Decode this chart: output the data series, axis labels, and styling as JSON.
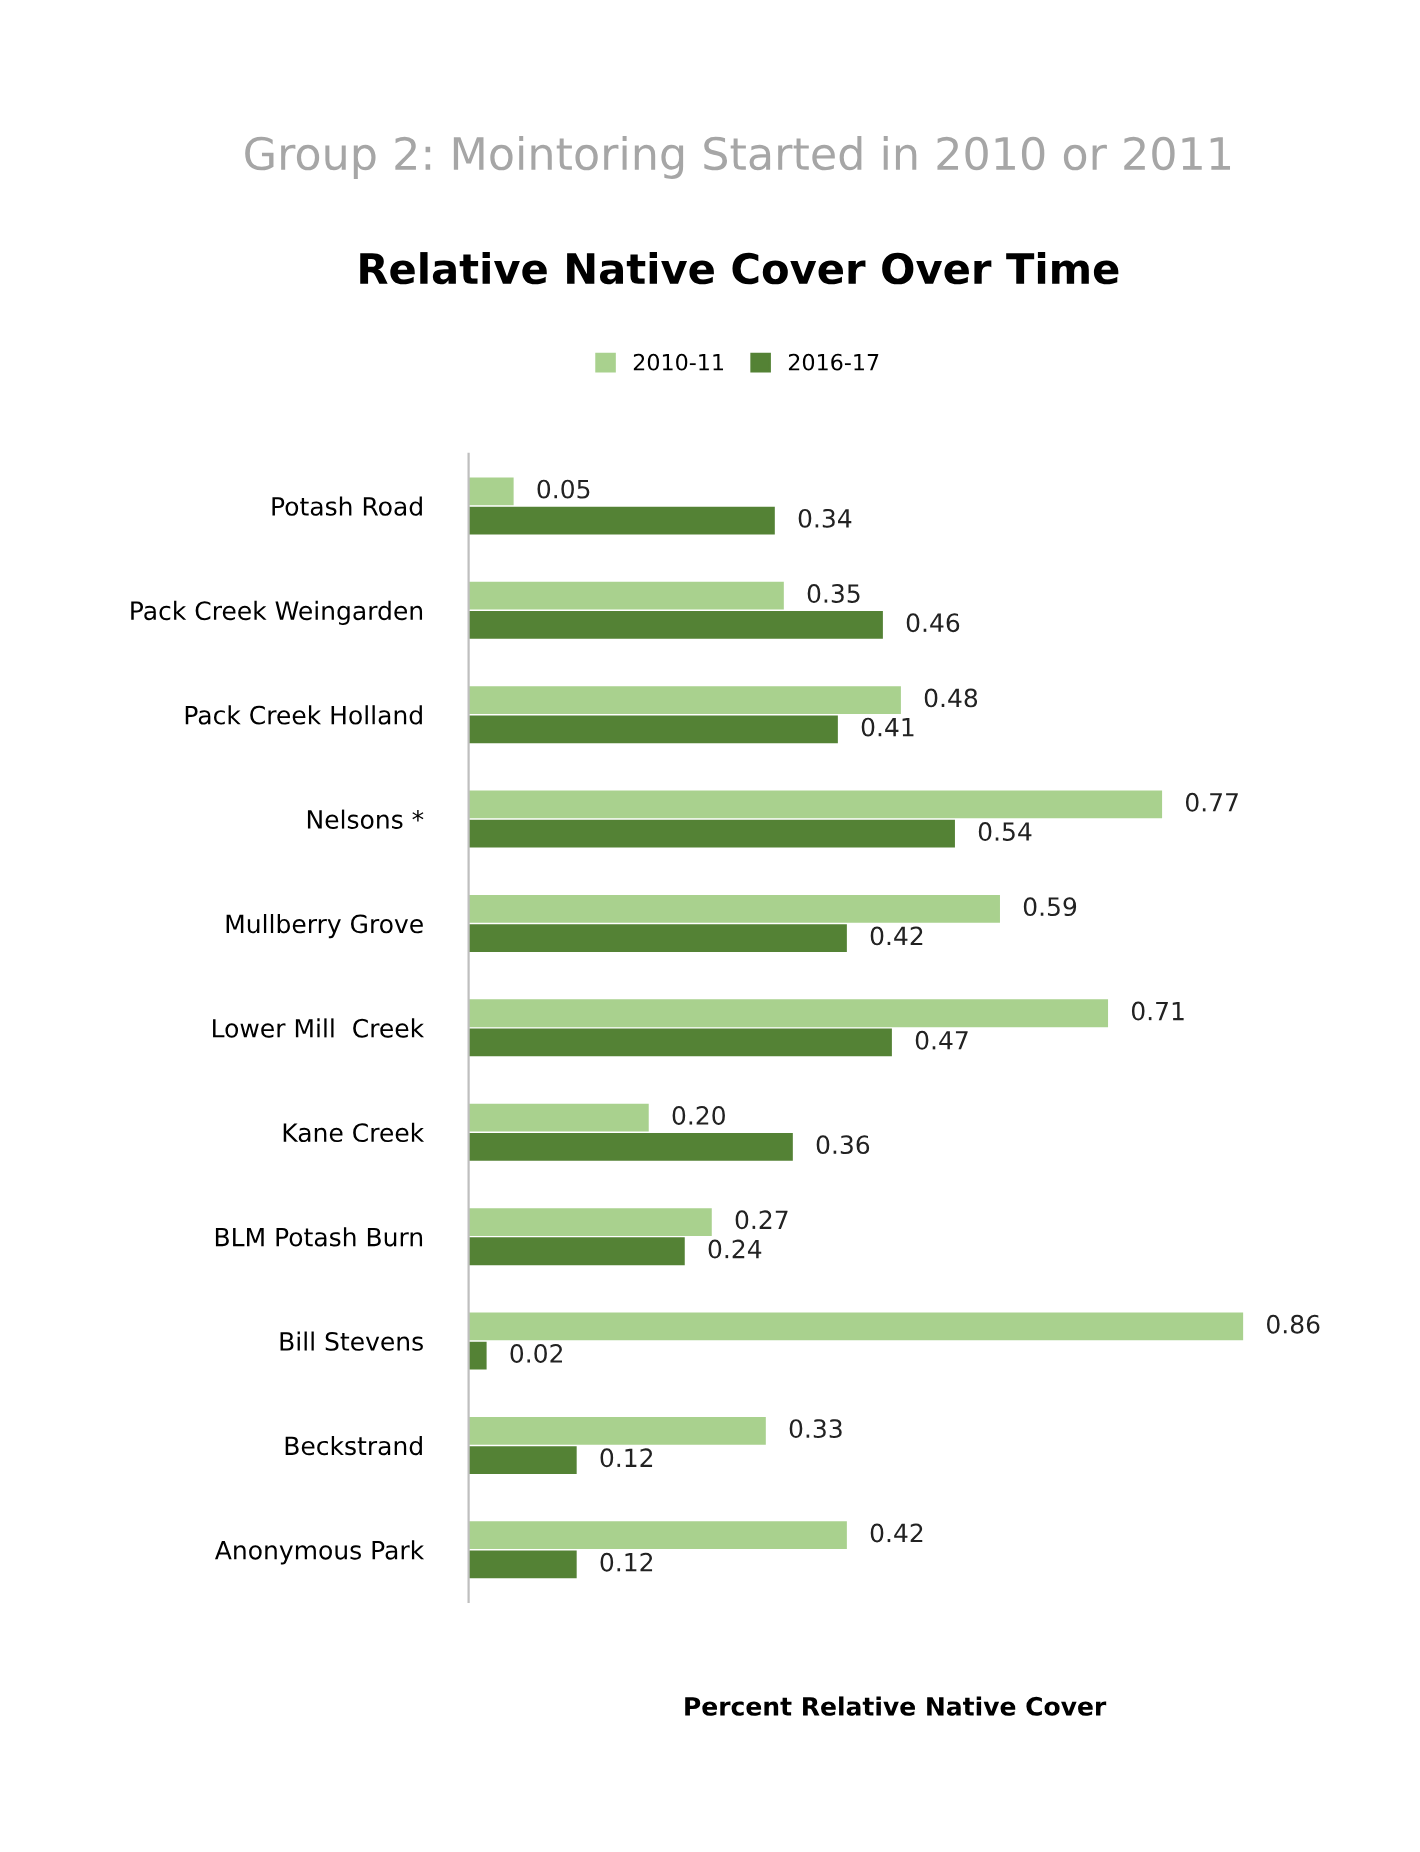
{
  "chart_data": {
    "type": "bar",
    "orientation": "horizontal",
    "title": "Group 2: Mointoring Started in 2010 or 2011",
    "subtitle": "Relative Native Cover Over Time",
    "xlabel": "Percent Relative Native Cover",
    "categories": [
      "Potash Road",
      "Pack Creek Weingarden",
      "Pack Creek Holland",
      "Nelsons *",
      "Mullberry Grove",
      "Lower Mill  Creek",
      "Kane Creek",
      "BLM Potash Burn",
      "Bill Stevens",
      "Beckstrand",
      "Anonymous Park"
    ],
    "series": [
      {
        "name": "2010-11",
        "color": "#a9d18e",
        "values": [
          0.05,
          0.35,
          0.48,
          0.77,
          0.59,
          0.71,
          0.2,
          0.27,
          0.86,
          0.33,
          0.42
        ],
        "value_labels": [
          "0.05",
          "0.35",
          "0.48",
          "0.77",
          "0.59",
          "0.71",
          "0.20",
          "0.27",
          "0.86",
          "0.33",
          "0.42"
        ]
      },
      {
        "name": "2016-17",
        "color": "#548235",
        "values": [
          0.34,
          0.46,
          0.41,
          0.54,
          0.42,
          0.47,
          0.36,
          0.24,
          0.02,
          0.12,
          0.12
        ],
        "value_labels": [
          "0.34",
          "0.46",
          "0.41",
          "0.54",
          "0.42",
          "0.47",
          "0.36",
          "0.24",
          "0.02",
          "0.12",
          "0.12"
        ]
      }
    ],
    "legend": "top"
  }
}
